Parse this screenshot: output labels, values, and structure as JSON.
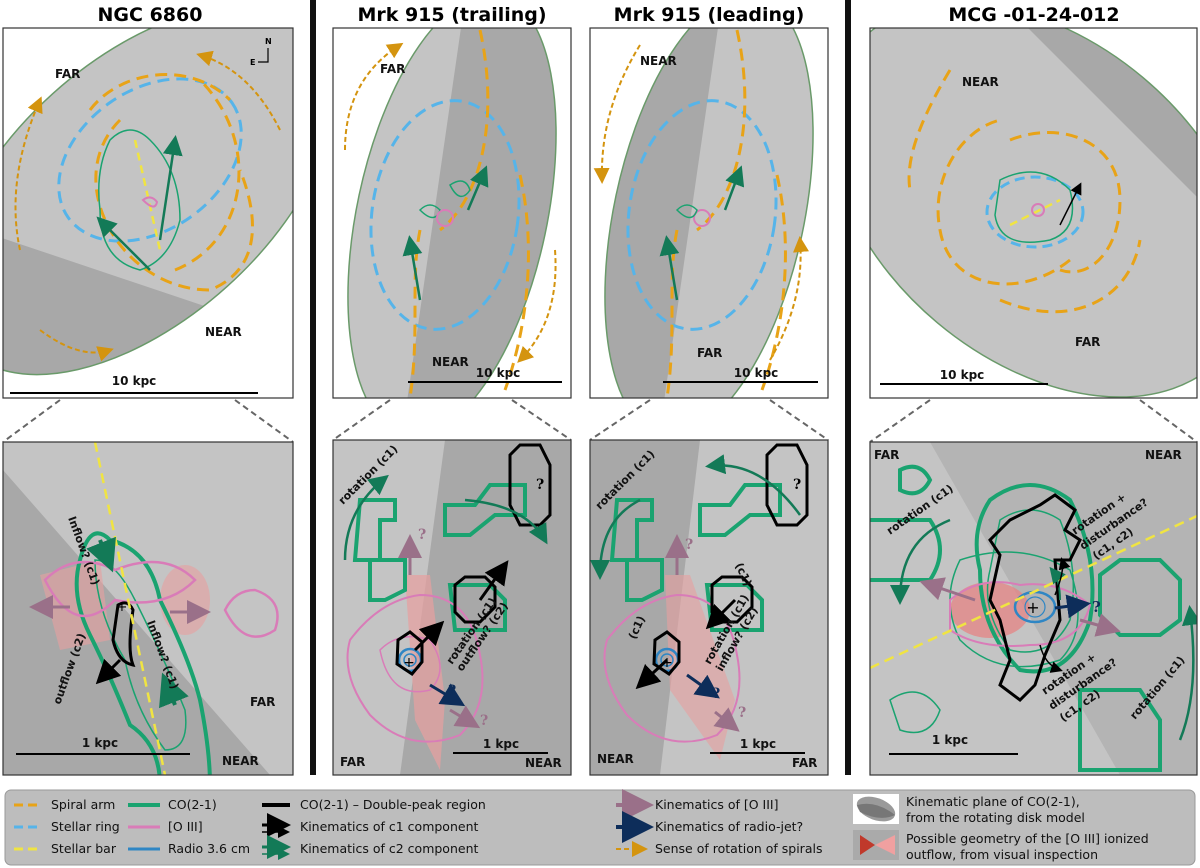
{
  "panels": [
    {
      "title": "NGC 6860",
      "top": {
        "far": "FAR",
        "near": "NEAR",
        "scale": "10 kpc",
        "compass_n": "N",
        "compass_e": "E"
      },
      "bottom": {
        "far": "FAR",
        "near": "NEAR",
        "scale": "1 kpc",
        "annotations": [
          "Inflow? (c1)",
          "Inflow? (c1)",
          "outflow (c2)"
        ]
      }
    },
    {
      "title": "Mrk 915 (trailing)",
      "top": {
        "far": "FAR",
        "near": "NEAR",
        "scale": "10 kpc"
      },
      "bottom": {
        "far": "FAR",
        "near": "NEAR",
        "scale": "1 kpc",
        "annotations": [
          "rotation (c1)",
          "rotation (c1)",
          "outflow? (c2)",
          "?",
          "?",
          "?",
          "?"
        ]
      }
    },
    {
      "title": "Mrk 915 (leading)",
      "top": {
        "far": "FAR",
        "near": "NEAR",
        "scale": "10 kpc"
      },
      "bottom": {
        "far": "FAR",
        "near": "NEAR",
        "scale": "1 kpc",
        "annotations": [
          "rotation (c1)",
          "(c1)",
          "(c1)",
          "rotation (c1)",
          "inflow? (c2)",
          "?",
          "?",
          "?",
          "?"
        ]
      }
    },
    {
      "title": "MCG -01-24-012",
      "top": {
        "far": "FAR",
        "near": "NEAR",
        "scale": "10 kpc"
      },
      "bottom": {
        "far": "FAR",
        "near": "NEAR",
        "scale": "1 kpc",
        "annotations": [
          "rotation (c1)",
          "rotation +",
          "disturbance?",
          "(c1, c2)",
          "rotation +",
          "disturbance?",
          "(c1, c2)",
          "rotation (c1)",
          "?"
        ]
      }
    }
  ],
  "legend": {
    "col1": [
      "Spiral arm",
      "Stellar ring",
      "Stellar bar"
    ],
    "col2": [
      "CO(2-1)",
      "[O III]",
      "Radio 3.6 cm"
    ],
    "col3": [
      "CO(2-1) –  Double-peak region",
      "Kinematics of c1 component",
      "Kinematics of c2 component"
    ],
    "col4": [
      "Kinematics of [O III]",
      "Kinematics of radio-jet?",
      "Sense of rotation of spirals"
    ],
    "col5": [
      "Kinematic plane of CO(2-1),",
      "from the rotating disk model",
      "Possible geometry of the [O III] ionized",
      "outflow, from visual inspection"
    ]
  },
  "colors": {
    "spiral_arm": "#e8a317",
    "stellar_ring": "#56b4e9",
    "stellar_bar": "#f0e442",
    "co": "#1aa370",
    "oiii": "#d97cb8",
    "radio": "#2f86c4",
    "c1": "#000000",
    "c2": "#137a57",
    "oiii_kin": "#9a7089",
    "radio_jet": "#0d2d5a",
    "rotation_sense": "#d4940f",
    "disk_light": "#c4c4c4",
    "disk_dark": "#a8a8a8",
    "legend_bg": "#bdbdbd"
  }
}
